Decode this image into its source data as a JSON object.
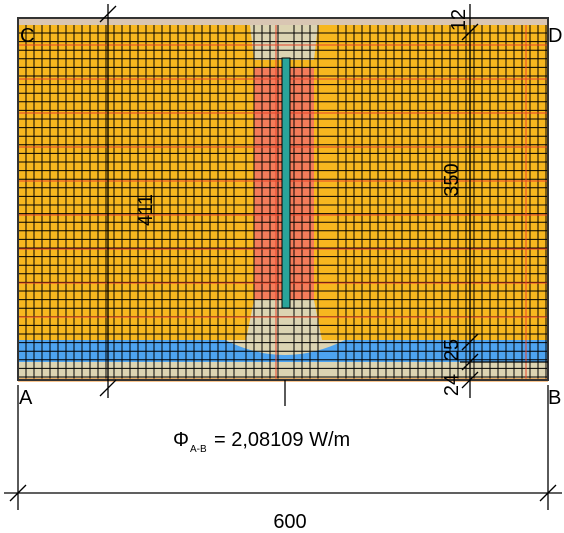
{
  "corners": {
    "top_left": "C",
    "top_right": "D",
    "bottom_left": "A",
    "bottom_right": "B"
  },
  "dimensions": {
    "total_height": "411",
    "top_layer": "12",
    "middle_layer": "350",
    "lower_layer": "25",
    "bottom_layer": "24",
    "width": "600"
  },
  "flux": {
    "symbol": "Φ",
    "subscript": "A-B",
    "value": "= 2,08109 W/m"
  }
}
